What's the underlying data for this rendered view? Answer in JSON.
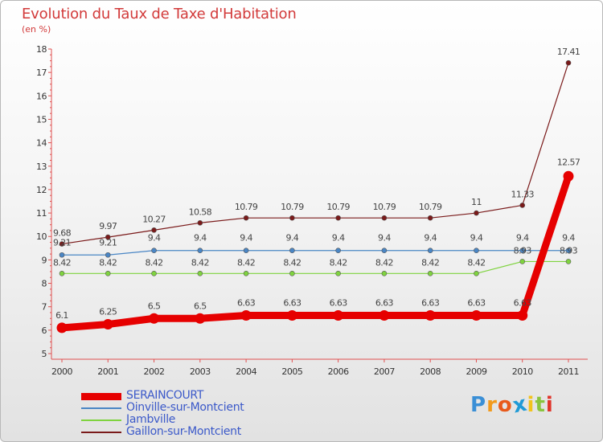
{
  "chart_data": {
    "type": "line",
    "title": "Evolution du Taux de Taxe d'Habitation",
    "subtitle": "(en %)",
    "categories": [
      "2000",
      "2001",
      "2002",
      "2003",
      "2004",
      "2005",
      "2006",
      "2007",
      "2008",
      "2009",
      "2010",
      "2011"
    ],
    "ylim": [
      5,
      18
    ],
    "yticks": [
      "5",
      "6",
      "7",
      "8",
      "9",
      "10",
      "11",
      "12",
      "13",
      "14",
      "15",
      "16",
      "17",
      "18"
    ],
    "series": [
      {
        "name": "SERAINCOURT",
        "color": "#e60000",
        "values": [
          6.1,
          6.25,
          6.5,
          6.5,
          6.63,
          6.63,
          6.63,
          6.63,
          6.63,
          6.63,
          6.63,
          12.57
        ],
        "labels": [
          "6.1",
          "6.25",
          "6.5",
          "6.5",
          "6.63",
          "6.63",
          "6.63",
          "6.63",
          "6.63",
          "6.63",
          "6.63",
          "12.57"
        ]
      },
      {
        "name": "Oinville-sur-Montcient",
        "color": "#4a86c5",
        "values": [
          9.21,
          9.21,
          9.4,
          9.4,
          9.4,
          9.4,
          9.4,
          9.4,
          9.4,
          9.4,
          9.4,
          9.4
        ],
        "labels": [
          "9.21",
          "9.21",
          "9.4",
          "9.4",
          "9.4",
          "9.4",
          "9.4",
          "9.4",
          "9.4",
          "9.4",
          "9.4",
          "9.4"
        ]
      },
      {
        "name": "Jambville",
        "color": "#7fd33f",
        "values": [
          8.42,
          8.42,
          8.42,
          8.42,
          8.42,
          8.42,
          8.42,
          8.42,
          8.42,
          8.42,
          8.93,
          8.93
        ],
        "labels": [
          "8.42",
          "8.42",
          "8.42",
          "8.42",
          "8.42",
          "8.42",
          "8.42",
          "8.42",
          "8.42",
          "8.42",
          "8.93",
          "8.93"
        ]
      },
      {
        "name": "Gaillon-sur-Montcient",
        "color": "#7a1a1a",
        "values": [
          9.68,
          9.97,
          10.27,
          10.58,
          10.79,
          10.79,
          10.79,
          10.79,
          10.79,
          11,
          11.33,
          17.41
        ],
        "labels": [
          "9.68",
          "9.97",
          "10.27",
          "10.58",
          "10.79",
          "10.79",
          "10.79",
          "10.79",
          "10.79",
          "11",
          "11.33",
          "17.41"
        ]
      }
    ]
  },
  "logo": {
    "letters": [
      "P",
      "r",
      "o",
      "x",
      "i",
      "t",
      "i"
    ],
    "colors": [
      "#3a8fd6",
      "#f29a1c",
      "#e85a1b",
      "#1f9ad6",
      "#f2c31c",
      "#8ac43f",
      "#e0342a"
    ]
  }
}
